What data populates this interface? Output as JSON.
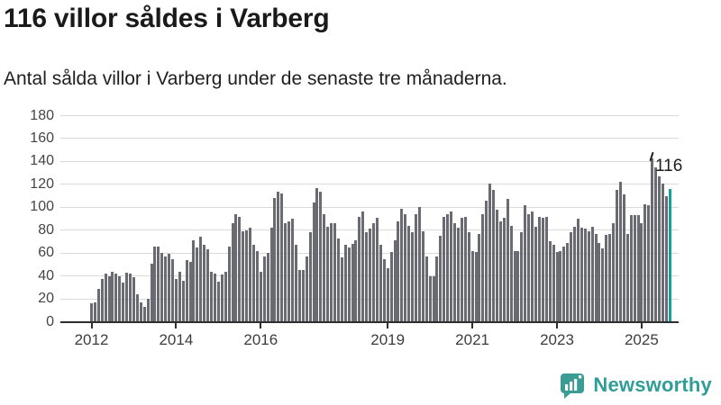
{
  "header": {
    "title": "116 villor såldes i Varberg",
    "subtitle": "Antal sålda villor i Varberg under de senaste tre månaderna."
  },
  "chart_data": {
    "type": "bar",
    "title": "116 villor såldes i Varberg",
    "subtitle": "Antal sålda villor i Varberg under de senaste tre månaderna.",
    "x_start": "2012-01",
    "x_end": "2025-09",
    "x_unit": "month",
    "values": [
      16,
      17,
      29,
      37,
      42,
      40,
      44,
      42,
      40,
      34,
      43,
      42,
      39,
      24,
      17,
      13,
      20,
      51,
      66,
      66,
      60,
      57,
      59,
      55,
      37,
      44,
      36,
      54,
      52,
      71,
      65,
      74,
      67,
      63,
      44,
      42,
      35,
      41,
      44,
      66,
      86,
      94,
      92,
      79,
      80,
      82,
      67,
      62,
      44,
      57,
      60,
      82,
      108,
      114,
      112,
      86,
      88,
      90,
      67,
      45,
      45,
      57,
      78,
      104,
      117,
      114,
      94,
      83,
      86,
      86,
      73,
      56,
      67,
      65,
      68,
      71,
      92,
      96,
      78,
      81,
      86,
      91,
      67,
      55,
      47,
      61,
      71,
      88,
      99,
      94,
      84,
      78,
      94,
      100,
      79,
      57,
      40,
      40,
      57,
      75,
      92,
      94,
      96,
      86,
      82,
      91,
      92,
      78,
      62,
      61,
      77,
      94,
      106,
      121,
      115,
      98,
      88,
      91,
      107,
      84,
      62,
      62,
      78,
      102,
      94,
      96,
      83,
      92,
      91,
      92,
      70,
      67,
      61,
      62,
      66,
      69,
      78,
      83,
      90,
      82,
      81,
      79,
      83,
      77,
      69,
      64,
      76,
      77,
      86,
      115,
      122,
      111,
      77,
      93,
      93,
      93,
      86,
      103,
      102,
      143,
      135,
      127,
      121,
      110,
      116
    ],
    "ylim": [
      0,
      180
    ],
    "yticks": [
      0,
      20,
      40,
      60,
      80,
      100,
      120,
      140,
      160,
      180
    ],
    "xticks": [
      {
        "label": "2012",
        "year": 2012
      },
      {
        "label": "2014",
        "year": 2014
      },
      {
        "label": "2016",
        "year": 2016
      },
      {
        "label": "2019",
        "year": 2019
      },
      {
        "label": "2021",
        "year": 2021
      },
      {
        "label": "2023",
        "year": 2023
      },
      {
        "label": "2025",
        "year": 2025
      }
    ],
    "grid": "horizontal",
    "legend": "none",
    "bar_color": "#6a6a73",
    "highlight_color": "#12a19b",
    "highlight_index": 164,
    "annotation": {
      "text": "116",
      "target": "last-bar"
    }
  },
  "footer": {
    "brand": "Newsworthy",
    "brand_color": "#2f9e96"
  }
}
